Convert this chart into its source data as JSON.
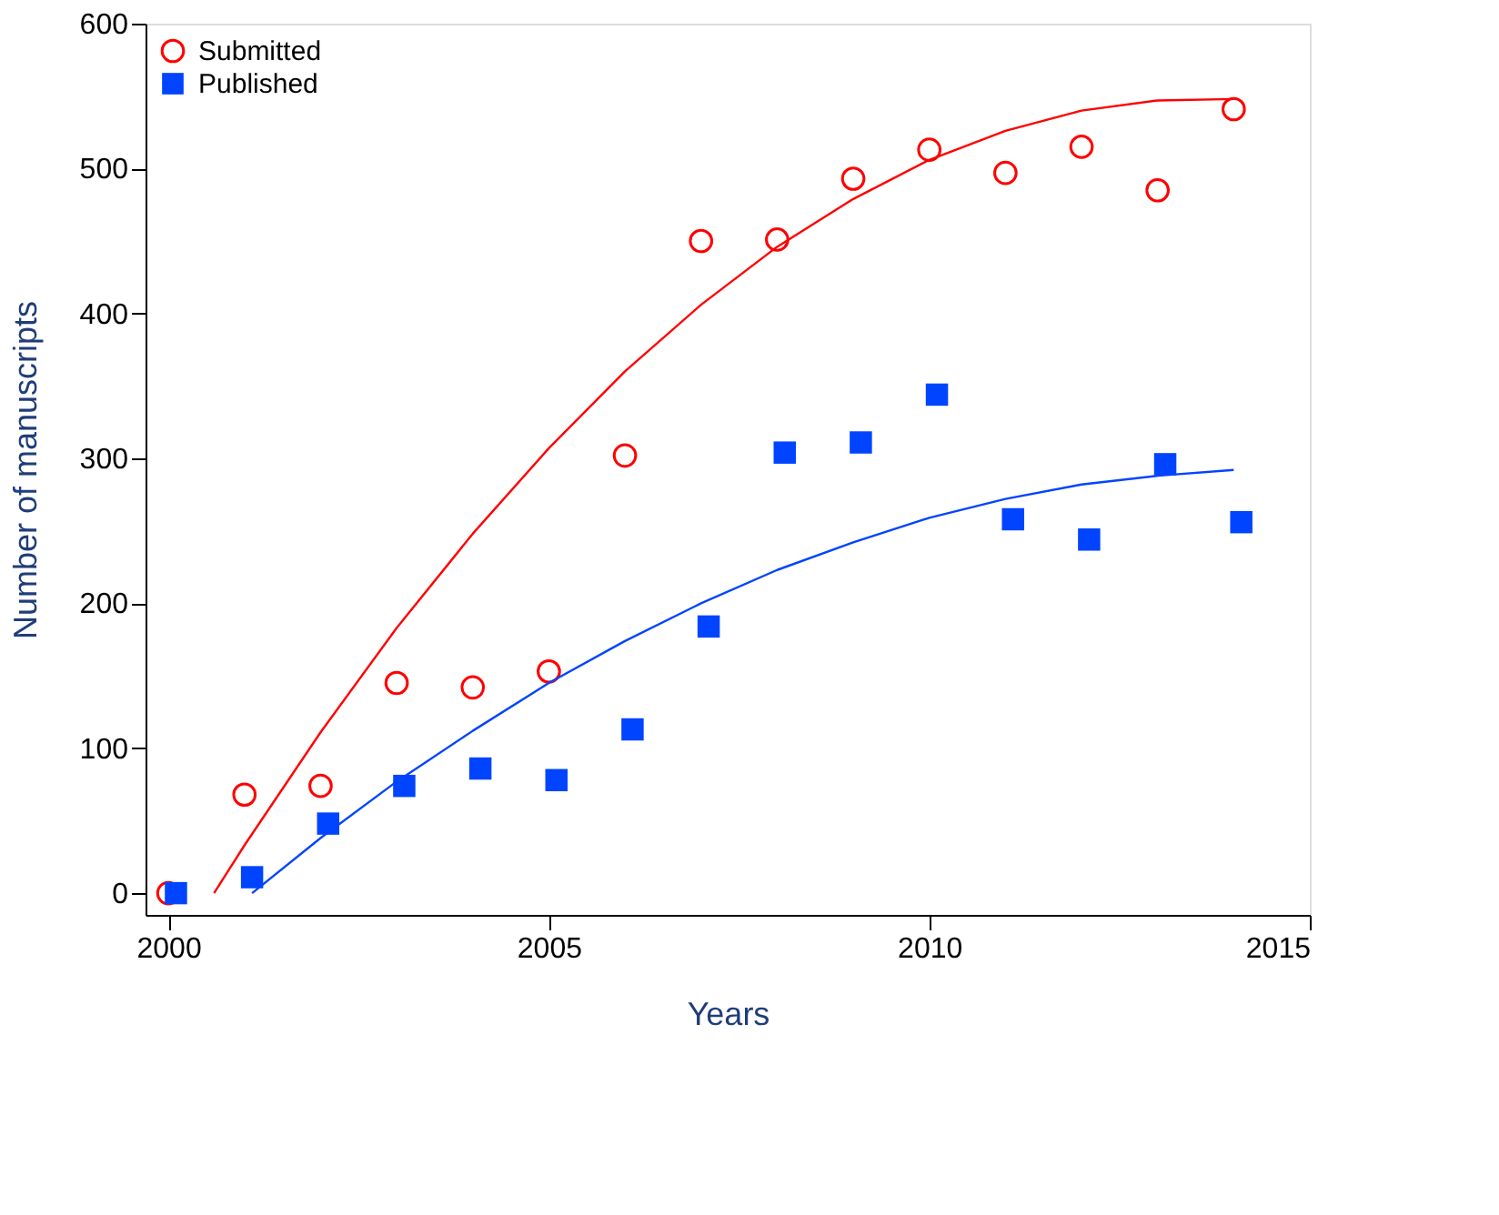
{
  "chart_data": {
    "type": "scatter",
    "xlabel": "Years",
    "ylabel": "Number of manuscripts",
    "xlim": [
      1999.7,
      2015
    ],
    "xticks": [
      2000,
      2005,
      2010,
      2015
    ],
    "ylim": [
      -15,
      600
    ],
    "yticks": [
      0,
      100,
      200,
      300,
      400,
      500,
      600
    ],
    "grid": false,
    "legend": "top left",
    "series": [
      {
        "name": "Submitted",
        "marker": "circle",
        "color": "#ff0000",
        "x": [
          2000,
          2001,
          2002,
          2003,
          2004,
          2005,
          2006,
          2007,
          2008,
          2009,
          2010,
          2011,
          2012,
          2013,
          2014
        ],
        "values": [
          0,
          68,
          74,
          145,
          142,
          153,
          302,
          450,
          451,
          493,
          513,
          497,
          515,
          485,
          541
        ]
      },
      {
        "name": "Published",
        "marker": "square",
        "color": "#0044ff",
        "x": [
          2000.1,
          2001.1,
          2002.1,
          2003.1,
          2004.1,
          2005.1,
          2006.1,
          2007.1,
          2008.1,
          2009.1,
          2010.1,
          2011.1,
          2012.1,
          2013.1,
          2014.1
        ],
        "values": [
          0,
          11,
          48,
          74,
          86,
          78,
          113,
          184,
          304,
          311,
          344,
          258,
          244,
          296,
          256
        ]
      },
      {
        "type": "line",
        "line_style": "solid",
        "color": "#ff0000",
        "x": [
          2000.6,
          2001,
          2002,
          2003,
          2004,
          2005,
          2006,
          2007,
          2008,
          2009,
          2010,
          2011,
          2012,
          2013,
          2014
        ],
        "values": [
          0,
          33,
          111,
          183,
          248,
          307,
          360,
          406,
          446,
          479,
          506,
          526,
          540,
          547,
          548
        ]
      },
      {
        "type": "line",
        "line_style": "solid",
        "color": "#0044ff",
        "x": [
          2001.1,
          2002,
          2003,
          2004,
          2005,
          2006,
          2007,
          2008,
          2009,
          2010,
          2011,
          2012,
          2013,
          2014
        ],
        "values": [
          0,
          38,
          77,
          112,
          145,
          174,
          200,
          223,
          242,
          259,
          272,
          282,
          288,
          292
        ]
      }
    ]
  }
}
